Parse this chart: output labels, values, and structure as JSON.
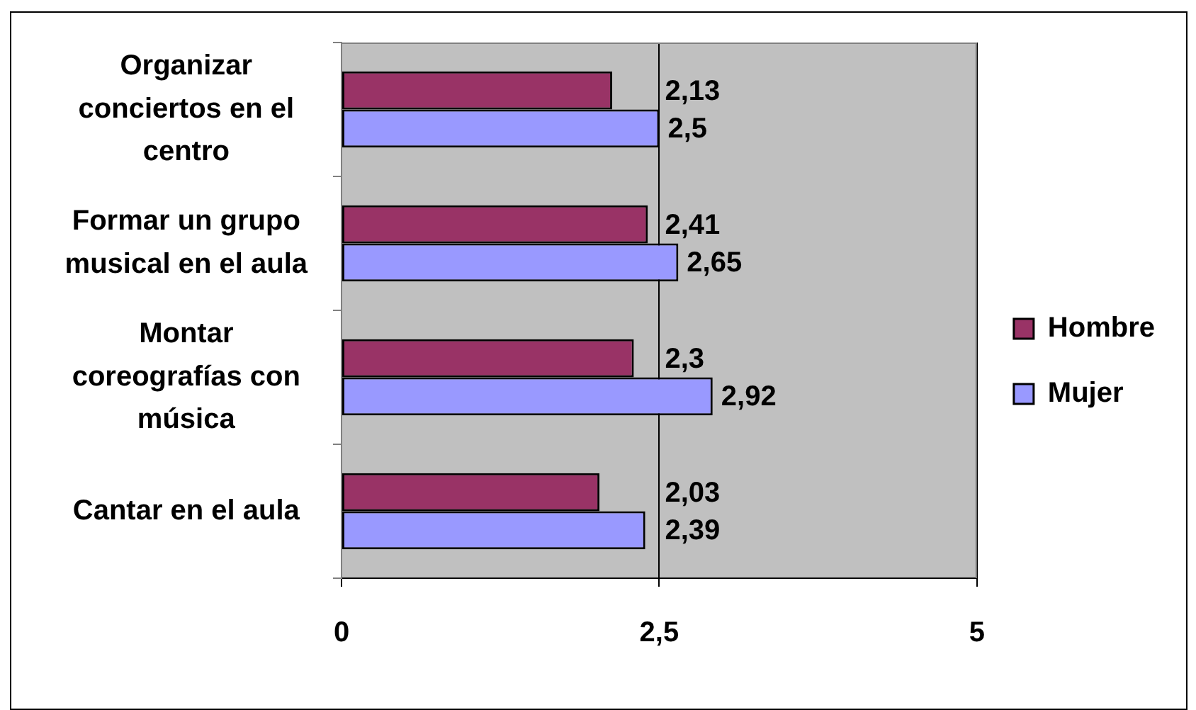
{
  "chart_data": {
    "type": "bar",
    "orientation": "horizontal",
    "categories": [
      "Organizar conciertos en el centro",
      "Formar un grupo musical en el aula",
      "Montar coreografías con música",
      "Cantar en el aula"
    ],
    "series": [
      {
        "name": "Hombre",
        "color": "#993366",
        "values": [
          2.13,
          2.41,
          2.3,
          2.03
        ],
        "value_labels": [
          "2,13",
          "2,41",
          "2,3",
          "2,03"
        ]
      },
      {
        "name": "Mujer",
        "color": "#9999ff",
        "values": [
          2.5,
          2.65,
          2.92,
          2.39
        ],
        "value_labels": [
          "2,5",
          "2,65",
          "2,92",
          "2,39"
        ]
      }
    ],
    "xlim": [
      0,
      5
    ],
    "xticks": [
      0,
      {
        "value": 2.5,
        "label": "2,5"
      },
      5
    ],
    "grid": "x",
    "legend": "right"
  }
}
